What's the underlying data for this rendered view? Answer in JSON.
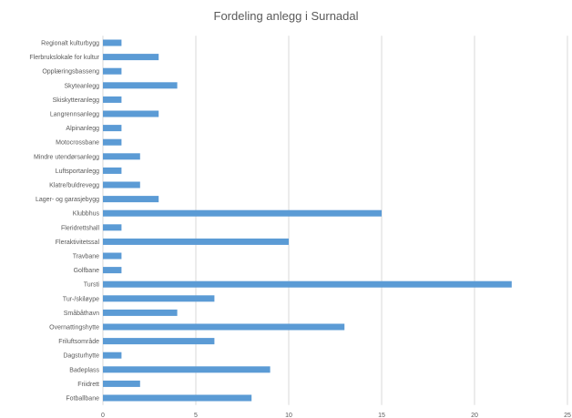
{
  "chart_data": {
    "type": "bar",
    "orientation": "horizontal",
    "title": "Fordeling anlegg i Surnadal",
    "categories": [
      "Regionalt kulturbygg",
      "Flerbrukslokale for kultur",
      "Opplæringsbasseng",
      "Skyteanlegg",
      "Skiskytteranlegg",
      "Langrennsanlegg",
      "Alpinanlegg",
      "Motocrossbane",
      "Mindre utendørsanlegg",
      "Luftsportanlegg",
      "Klatre/buldrevegg",
      "Lager- og garasjebygg",
      "Klubbhus",
      "Fleridrettshall",
      "Fleraktivitetssal",
      "Travbane",
      "Golfbane",
      "Tursti",
      "Tur-/skiløype",
      "Småbåthavn",
      "Overnattingshytte",
      "Friluftsområde",
      "Dagsturhytte",
      "Badeplass",
      "Friidrett",
      "Fotballbane"
    ],
    "values": [
      1,
      3,
      1,
      4,
      1,
      3,
      1,
      1,
      2,
      1,
      2,
      3,
      15,
      1,
      10,
      1,
      1,
      22,
      6,
      4,
      13,
      6,
      1,
      9,
      2,
      8
    ],
    "x_ticks": [
      "0",
      "5",
      "10",
      "15",
      "20",
      "25"
    ],
    "xlim": [
      0,
      25
    ],
    "grid": "vertical",
    "legend": "none",
    "bar_color": "#5b9bd5",
    "grid_color": "#d9d9d9",
    "label_color": "#595959"
  }
}
